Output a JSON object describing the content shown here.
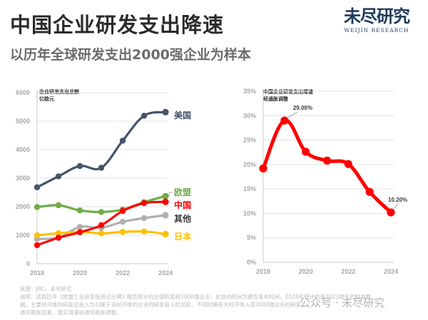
{
  "header": {
    "title": "中国企业研发支出降速",
    "subtitle": "以历年全球研发支出2000强企业为样本",
    "logo_cn": "未尽研究",
    "logo_en": "WEIJIN RESEARCH"
  },
  "footer": {
    "source": "来源：JRC，未尽研究",
    "note_line1": "说明：选取历年《欧盟工业研发投资记分牌》报告统计的全球研发前2000强企业，此处的时间为报告发布时间，2024年统计的是2023财年的财务数",
    "note_line2": "据。主要经济体的研发总投入为归属于该经济体的企业的研发投入的总和，不同时期各大经济体入选2000强企业的研发...",
    "note_line3": "通货膨胀因素，真实增速经通货膨胀调整。",
    "watermark": "公众号 · 未尽研究"
  },
  "colors": {
    "us": "#44546a",
    "eu": "#70ad47",
    "china": "#ff0000",
    "others": "#b0b0b0",
    "japan": "#ffc000",
    "grid": "#e3e3e3",
    "axis": "#c8c8c8"
  },
  "chart_data": [
    {
      "type": "line",
      "title": "企业研发支出总额",
      "ylabel": "亿欧元",
      "xlabel": "",
      "x": [
        2018,
        2019,
        2020,
        2021,
        2022,
        2023,
        2024
      ],
      "xticks": [
        "2018",
        "2020",
        "2022",
        "2024"
      ],
      "yticks": [
        "0",
        "1000",
        "2000",
        "3000",
        "4000",
        "5000",
        "6000"
      ],
      "ylim": [
        0,
        6000
      ],
      "grid": true,
      "legend": "end-of-line labels (right)",
      "series": [
        {
          "key": "us",
          "name": "美国",
          "values": [
            2680,
            3065,
            3425,
            3365,
            4315,
            5190,
            5315
          ]
        },
        {
          "key": "eu",
          "name": "欧盟",
          "values": [
            1985,
            2050,
            1870,
            1815,
            1900,
            2160,
            2370
          ]
        },
        {
          "key": "china",
          "name": "中国",
          "values": [
            650,
            910,
            1105,
            1350,
            1850,
            2125,
            2170
          ]
        },
        {
          "key": "others",
          "name": "其他",
          "values": [
            870,
            920,
            1290,
            1260,
            1470,
            1600,
            1700
          ]
        },
        {
          "key": "japan",
          "name": "日本",
          "values": [
            995,
            1070,
            1115,
            1065,
            1115,
            1130,
            1040
          ]
        }
      ]
    },
    {
      "type": "line",
      "title": "中国企业研发支出增速",
      "ylabel": "经通胀调整",
      "xlabel": "",
      "x": [
        2018,
        2019,
        2020,
        2021,
        2022,
        2023,
        2024
      ],
      "xticks": [
        "2018",
        "2020",
        "2022",
        "2024"
      ],
      "yticks": [
        "0%",
        "5%",
        "10%",
        "15%",
        "20%",
        "25%",
        "30%",
        "35%"
      ],
      "ylim": [
        0,
        35
      ],
      "grid": true,
      "series": [
        {
          "key": "china",
          "name": "中国",
          "values": [
            19.2,
            29.0,
            22.6,
            20.8,
            20.1,
            14.4,
            10.2
          ]
        }
      ],
      "annotations": [
        {
          "x": 2019,
          "text": "29.00%"
        },
        {
          "x": 2024,
          "text": "10.20%"
        }
      ]
    }
  ]
}
